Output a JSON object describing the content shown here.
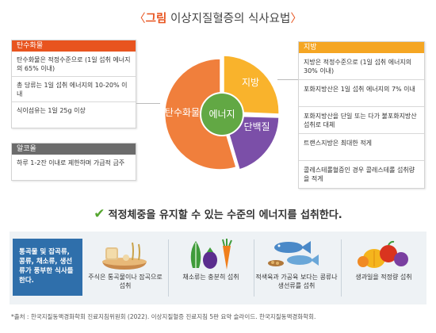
{
  "title": {
    "open": "〈",
    "keyword": "그림",
    "text": " 이상지질혈증의 식사요법",
    "close": "〉"
  },
  "colors": {
    "carbohydrate": "#f07f3c",
    "fat": "#f9b32c",
    "protein": "#7b4fa8",
    "energy": "#62a844",
    "alcohol": "#6b6b6b",
    "lead_box": "#2f6fab"
  },
  "pie": {
    "center": "에너지",
    "carbohydrate": "탄수화물",
    "fat": "지방",
    "protein": "단백질"
  },
  "carb_panel": {
    "header": "탄수화물",
    "rows": [
      "탄수화물은 적정수준으로 (1일 섭취 에너지의 65% 이내)",
      "총 당류는 1일 섭취 에너지의 10-20% 이내",
      "식이섬유는 1일 25g 이상"
    ]
  },
  "alcohol_panel": {
    "header": "알코올",
    "rows": [
      "하루 1-2잔 이내로 제한하며 가급적 금주"
    ]
  },
  "fat_panel": {
    "header": "지방",
    "rows": [
      "지방은 적정수준으로 (1일 섭취 에너지의 30% 이내)",
      "포화지방산은 1일 섭취 에너지의 7% 이내",
      "포화지방산을 단일 또는 다가 불포화지방산 섭취로 대체",
      "트랜스지방은 최대한 적게",
      "콜레스테롤혈증인 경우 콜레스테롤 섭취량을 적게"
    ]
  },
  "message": "적정체중을 유지할 수 있는 수준의 에너지를 섭취한다.",
  "band": {
    "lead": "통곡물 및 잡곡류, 콩류, 채소류, 생선류가 풍부한 식사를 한다.",
    "items": [
      {
        "icon": "grain-bowl-icon",
        "label": "주식은 통곡물이나 잡곡으로 섭취"
      },
      {
        "icon": "vegetables-icon",
        "label": "채소류는 충분히 섭취"
      },
      {
        "icon": "fish-icon",
        "label": "적색육과 가공육 보다는 콩류나 생선류를 섭취"
      },
      {
        "icon": "fruits-icon",
        "label": "생과일을 적정량 섭취"
      }
    ]
  },
  "source": "*출처 : 한국지질동맥경화학회 진료지침위원회 (2022). 이상지질혈증 진료지침 5판 요약 슬라이드. 한국지질동맥경화학회."
}
